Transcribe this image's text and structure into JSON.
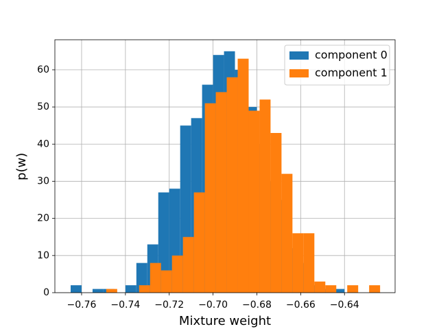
{
  "chart_data": {
    "type": "histogram",
    "xlabel": "Mixture weight",
    "ylabel": "p(w)",
    "xlim": [
      -0.7722,
      -0.6169
    ],
    "ylim": [
      0,
      68.1
    ],
    "xticks": [
      {
        "value": -0.76,
        "label": "−0.76"
      },
      {
        "value": -0.74,
        "label": "−0.74"
      },
      {
        "value": -0.72,
        "label": "−0.72"
      },
      {
        "value": -0.7,
        "label": "−0.70"
      },
      {
        "value": -0.68,
        "label": "−0.68"
      },
      {
        "value": -0.66,
        "label": "−0.66"
      },
      {
        "value": -0.64,
        "label": "−0.64"
      }
    ],
    "yticks": [
      0,
      10,
      20,
      30,
      40,
      50,
      60
    ],
    "grid": true,
    "legend": "upper right",
    "series": [
      {
        "name": "component 0",
        "color": "#1f77b4",
        "bins": [
          -0.765,
          -0.76,
          -0.755,
          -0.75,
          -0.745,
          -0.74,
          -0.735,
          -0.73,
          -0.725,
          -0.72,
          -0.715,
          -0.71,
          -0.705,
          -0.7,
          -0.695,
          -0.69,
          -0.685,
          -0.68,
          -0.675,
          -0.67,
          -0.665,
          -0.66,
          -0.655,
          -0.65,
          -0.645,
          -0.64
        ],
        "values": [
          2,
          0,
          1,
          1,
          0,
          2,
          8,
          13,
          27,
          28,
          45,
          47,
          56,
          64,
          65,
          60,
          50,
          40,
          30,
          25,
          12,
          8,
          2,
          1,
          1
        ]
      },
      {
        "name": "component 1",
        "color": "#ff7f0e",
        "bins": [
          -0.74875,
          -0.74375,
          -0.73875,
          -0.73375,
          -0.72875,
          -0.72375,
          -0.71875,
          -0.71375,
          -0.70875,
          -0.70375,
          -0.69875,
          -0.69375,
          -0.68875,
          -0.68375,
          -0.67875,
          -0.67375,
          -0.66875,
          -0.66375,
          -0.65875,
          -0.65375,
          -0.64875,
          -0.64375,
          -0.63875,
          -0.63375,
          -0.62875,
          -0.62375
        ],
        "values": [
          1,
          0,
          0,
          2,
          8,
          6,
          10,
          15,
          27,
          51,
          54,
          58,
          63,
          49,
          52,
          43,
          32,
          16,
          16,
          3,
          2,
          0,
          2,
          0,
          2
        ]
      }
    ]
  }
}
